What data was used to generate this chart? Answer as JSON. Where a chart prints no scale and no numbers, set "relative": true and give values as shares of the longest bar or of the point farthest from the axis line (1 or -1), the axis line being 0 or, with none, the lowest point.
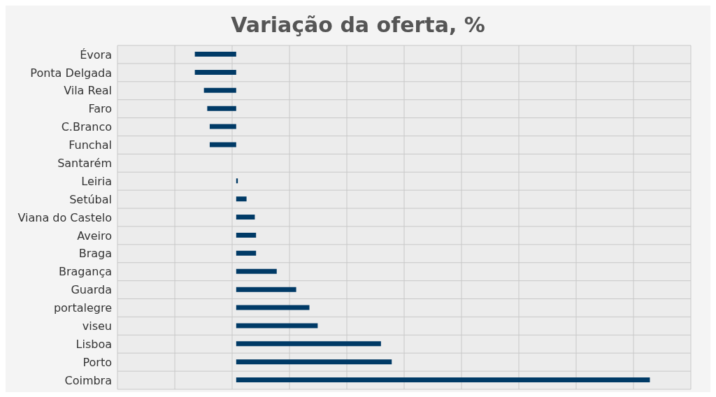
{
  "chart_data": {
    "type": "bar",
    "title": "Variação da oferta, %",
    "orientation": "horizontal",
    "relative": true,
    "grid": true,
    "categories": [
      "Évora",
      "Ponta Delgada",
      "Vila Real",
      "Faro",
      "C.Branco",
      "Funchal",
      "Santarém",
      "Leiria",
      "Setúbal",
      "Viana do Castelo",
      "Aveiro",
      "Braga",
      "Bragança",
      "Guarda",
      "portalegre",
      "viseu",
      "Lisboa",
      "Porto",
      "Coimbra"
    ],
    "values": [
      -0.1,
      -0.1,
      -0.078,
      -0.07,
      -0.064,
      -0.064,
      0,
      0.004,
      0.025,
      0.045,
      0.048,
      0.048,
      0.098,
      0.145,
      0.177,
      0.197,
      0.35,
      0.376,
      1
    ],
    "color": "#003a66"
  }
}
